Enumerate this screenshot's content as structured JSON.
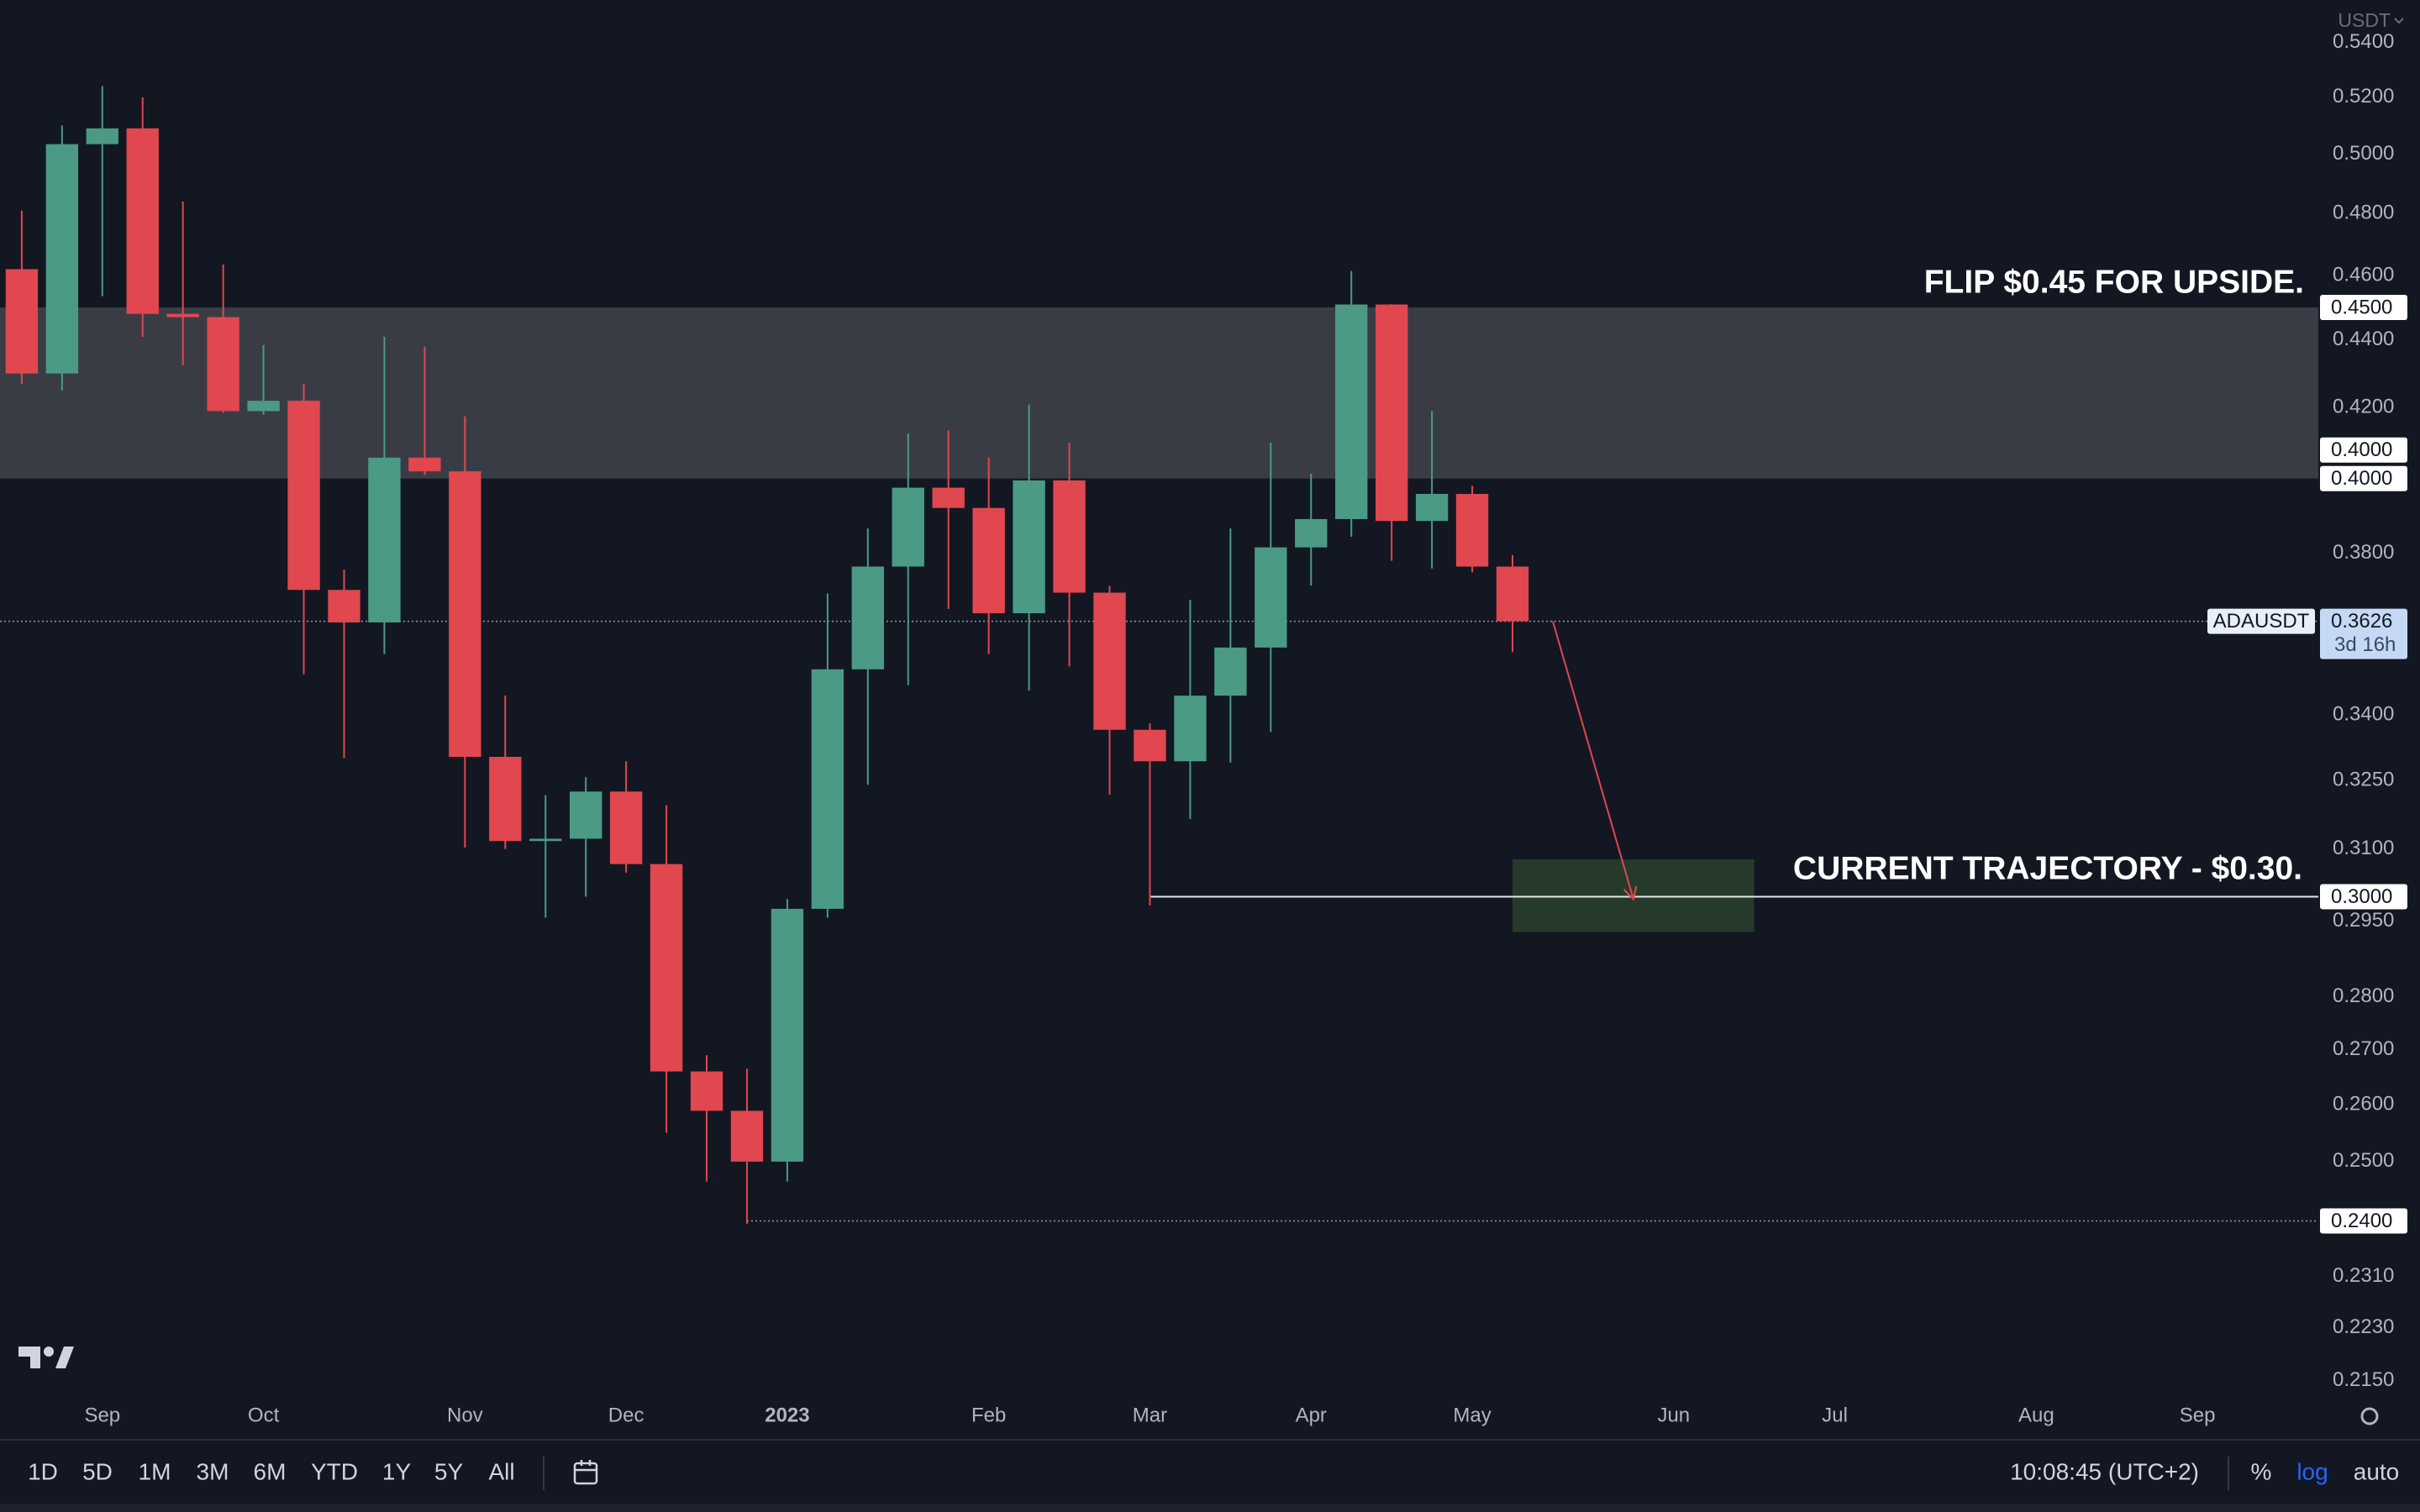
{
  "currency": "USDT",
  "chart_data": {
    "type": "candlestick",
    "symbol": "ADAUSDT",
    "countdown": "3d 16h",
    "log_scale": true,
    "grid": false,
    "up_color": "#4a9a86",
    "down_color": "#e0474f",
    "xlim": [
      -0.54,
      57.0
    ],
    "ylim": [
      0.213,
      0.556
    ],
    "yticks": [
      {
        "value": 0.54,
        "label": "0.5400"
      },
      {
        "value": 0.52,
        "label": "0.5200"
      },
      {
        "value": 0.5,
        "label": "0.5000"
      },
      {
        "value": 0.48,
        "label": "0.4800"
      },
      {
        "value": 0.46,
        "label": "0.4600"
      },
      {
        "value": 0.44,
        "label": "0.4400"
      },
      {
        "value": 0.42,
        "label": "0.4200"
      },
      {
        "value": 0.38,
        "label": "0.3800"
      },
      {
        "value": 0.34,
        "label": "0.3400"
      },
      {
        "value": 0.325,
        "label": "0.3250"
      },
      {
        "value": 0.31,
        "label": "0.3100"
      },
      {
        "value": 0.295,
        "label": "0.2950"
      },
      {
        "value": 0.28,
        "label": "0.2800"
      },
      {
        "value": 0.27,
        "label": "0.2700"
      },
      {
        "value": 0.26,
        "label": "0.2600"
      },
      {
        "value": 0.25,
        "label": "0.2500"
      },
      {
        "value": 0.231,
        "label": "0.2310"
      },
      {
        "value": 0.223,
        "label": "0.2230"
      },
      {
        "value": 0.215,
        "label": "0.2150"
      }
    ],
    "xticks": [
      {
        "value": 2,
        "label": "Sep"
      },
      {
        "value": 6,
        "label": "Oct"
      },
      {
        "value": 11,
        "label": "Nov"
      },
      {
        "value": 15,
        "label": "Dec"
      },
      {
        "value": 19,
        "label": "2023",
        "bold": true
      },
      {
        "value": 24,
        "label": "Feb"
      },
      {
        "value": 28,
        "label": "Mar"
      },
      {
        "value": 32,
        "label": "Apr"
      },
      {
        "value": 36,
        "label": "May"
      },
      {
        "value": 41,
        "label": "Jun"
      },
      {
        "value": 45,
        "label": "Jul"
      },
      {
        "value": 50,
        "label": "Aug"
      },
      {
        "value": 54,
        "label": "Sep"
      }
    ],
    "open": [
      0.462,
      0.43,
      0.5035,
      0.509,
      0.448,
      0.447,
      0.419,
      0.422,
      0.3705,
      0.3623,
      0.4058,
      0.402,
      0.3303,
      0.3117,
      0.3122,
      0.3225,
      0.3068,
      0.266,
      0.2589,
      0.25,
      0.2975,
      0.3508,
      0.3765,
      0.3975,
      0.392,
      0.3646,
      0.3995,
      0.3698,
      0.3365,
      0.3293,
      0.3445,
      0.3561,
      0.3815,
      0.389,
      0.4509,
      0.3885,
      0.3958,
      0.3765
    ],
    "high": [
      0.481,
      0.51,
      0.524,
      0.52,
      0.484,
      0.4635,
      0.4385,
      0.427,
      0.3757,
      0.441,
      0.438,
      0.4175,
      0.3445,
      0.3217,
      0.3257,
      0.3293,
      0.3195,
      0.269,
      0.2665,
      0.2995,
      0.3696,
      0.3865,
      0.4126,
      0.4135,
      0.4058,
      0.4209,
      0.41,
      0.3715,
      0.338,
      0.368,
      0.3865,
      0.41,
      0.4013,
      0.4614,
      0.451,
      0.419,
      0.398,
      0.3795
    ],
    "low": [
      0.427,
      0.425,
      0.4535,
      0.441,
      0.4325,
      0.4185,
      0.418,
      0.3496,
      0.33,
      0.3545,
      0.401,
      0.3103,
      0.31,
      0.2957,
      0.3,
      0.305,
      0.255,
      0.2466,
      0.2395,
      0.2466,
      0.2957,
      0.324,
      0.347,
      0.3657,
      0.3545,
      0.3457,
      0.3515,
      0.3218,
      0.2982,
      0.3165,
      0.329,
      0.336,
      0.3716,
      0.3843,
      0.378,
      0.376,
      0.375,
      0.355
    ],
    "close": [
      0.43,
      0.5035,
      0.509,
      0.448,
      0.447,
      0.419,
      0.422,
      0.3705,
      0.3623,
      0.4058,
      0.402,
      0.3303,
      0.3117,
      0.3122,
      0.3225,
      0.3068,
      0.266,
      0.2589,
      0.25,
      0.2975,
      0.3508,
      0.3765,
      0.3975,
      0.392,
      0.3646,
      0.3995,
      0.3698,
      0.3365,
      0.3293,
      0.3445,
      0.3561,
      0.3815,
      0.389,
      0.4509,
      0.3885,
      0.3958,
      0.3765,
      0.3626
    ],
    "zones": [
      {
        "from": 0.4,
        "to": 0.45,
        "color": "#3a3c45"
      },
      {
        "from": 0.2928,
        "to": 0.3078,
        "x": [
          37,
          43
        ],
        "color": "#263a2c"
      }
    ],
    "arrow": {
      "from": [
        38,
        0.3626
      ],
      "to": [
        40,
        0.2995
      ],
      "color": "#e0474f"
    },
    "price_labels": [
      {
        "value": 0.45,
        "label": "0.4500"
      },
      {
        "value": 0.4,
        "label": "0.4000"
      },
      {
        "value": 0.4,
        "label": "0.4000"
      },
      {
        "value": 0.3626,
        "label": "0.3626",
        "current": true,
        "line": "dotted"
      },
      {
        "value": 0.3,
        "label": "0.3000",
        "line": "solid",
        "line_from": 28
      },
      {
        "value": 0.24,
        "label": "0.2400",
        "line": "dotted",
        "line_from": 18
      }
    ],
    "annotations": [
      "FLIP $0.45 FOR UPSIDE.",
      "CURRENT TRAJECTORY - $0.30."
    ]
  },
  "toolbar": {
    "ranges": [
      "1D",
      "5D",
      "1M",
      "3M",
      "6M",
      "YTD",
      "1Y",
      "5Y",
      "All"
    ],
    "time": "10:08:45 (UTC+2)",
    "options": [
      "%",
      "log",
      "auto"
    ],
    "active_option": 1
  }
}
